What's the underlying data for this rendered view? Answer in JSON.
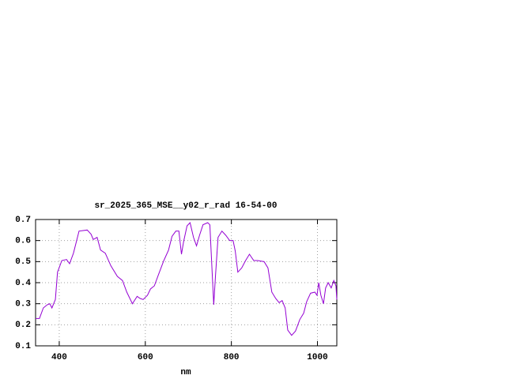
{
  "chart_data": {
    "type": "line",
    "title": "sr_2025_365_MSE__y02_r_rad 16-54-00",
    "x_label": "nm",
    "x": [
      345,
      354,
      363,
      372,
      378,
      383,
      391,
      396,
      406,
      417,
      424,
      433,
      446,
      465,
      474,
      479,
      488,
      496,
      507,
      520,
      535,
      547,
      557,
      570,
      581,
      588,
      595,
      605,
      612,
      621,
      630,
      643,
      654,
      662,
      671,
      678,
      684,
      689,
      697,
      704,
      712,
      719,
      726,
      734,
      745,
      750,
      754,
      759,
      763,
      769,
      778,
      787,
      796,
      804,
      809,
      815,
      824,
      833,
      842,
      852,
      861,
      876,
      885,
      894,
      903,
      911,
      918,
      925,
      931,
      940,
      949,
      959,
      968,
      975,
      984,
      994,
      999,
      1003,
      1008,
      1014,
      1019,
      1025,
      1032,
      1038,
      1043,
      1045
    ],
    "series": [
      {
        "color": "#9400d3",
        "values": [
          0.23,
          0.23,
          0.28,
          0.295,
          0.3,
          0.28,
          0.32,
          0.45,
          0.505,
          0.51,
          0.49,
          0.54,
          0.645,
          0.65,
          0.63,
          0.605,
          0.615,
          0.555,
          0.54,
          0.48,
          0.43,
          0.41,
          0.355,
          0.3,
          0.335,
          0.325,
          0.32,
          0.34,
          0.37,
          0.385,
          0.435,
          0.505,
          0.555,
          0.62,
          0.645,
          0.645,
          0.535,
          0.595,
          0.67,
          0.685,
          0.615,
          0.575,
          0.625,
          0.675,
          0.685,
          0.675,
          0.505,
          0.295,
          0.43,
          0.615,
          0.645,
          0.625,
          0.6,
          0.6,
          0.55,
          0.45,
          0.47,
          0.505,
          0.535,
          0.505,
          0.505,
          0.5,
          0.47,
          0.355,
          0.325,
          0.305,
          0.315,
          0.28,
          0.175,
          0.15,
          0.17,
          0.225,
          0.255,
          0.31,
          0.35,
          0.355,
          0.34,
          0.4,
          0.34,
          0.3,
          0.375,
          0.4,
          0.375,
          0.41,
          0.385,
          0.32
        ]
      }
    ],
    "xlim": [
      345,
      1045
    ],
    "xticks": [
      400,
      600,
      800,
      1000
    ],
    "ylim": [
      0.1,
      0.7
    ],
    "yticks": [
      0.1,
      0.2,
      0.3,
      0.4,
      0.5,
      0.6,
      0.7
    ],
    "grid": true
  }
}
